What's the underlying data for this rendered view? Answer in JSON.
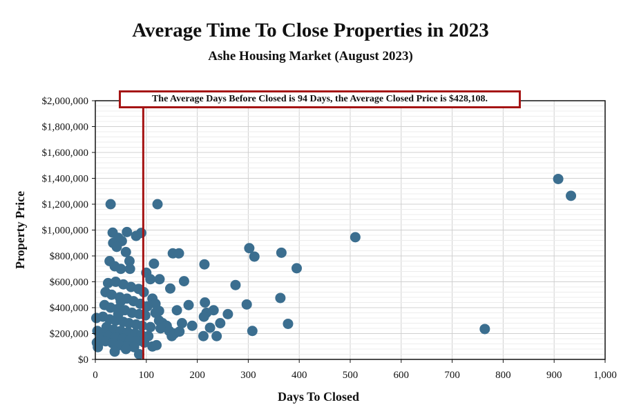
{
  "title": "Average Time To Close Properties in 2023",
  "subtitle": "Ashe Housing Market (August 2023)",
  "annotation": "The Average Days Before Closed is 94 Days, the Average Closed Price is $428,108.",
  "colors": {
    "points": "#3b6e8f",
    "reference_line": "#a51414",
    "grid": "#d0d0d0"
  },
  "chart_data": {
    "type": "scatter",
    "xlabel": "Days To Closed",
    "ylabel": "Property Price",
    "xlim": [
      0,
      1000
    ],
    "ylim": [
      0,
      2000000
    ],
    "xticks": [
      "0",
      "100",
      "200",
      "300",
      "400",
      "500",
      "600",
      "700",
      "800",
      "900",
      "1,000"
    ],
    "yticks": [
      "$0",
      "$200,000",
      "$400,000",
      "$600,000",
      "$800,000",
      "$1,000,000",
      "$1,200,000",
      "$1,400,000",
      "$1,600,000",
      "$1,800,000",
      "$2,000,000"
    ],
    "xtick_values": [
      0,
      100,
      200,
      300,
      400,
      500,
      600,
      700,
      800,
      900,
      1000
    ],
    "ytick_values": [
      0,
      200000,
      400000,
      600000,
      800000,
      1000000,
      1200000,
      1400000,
      1600000,
      1800000,
      2000000
    ],
    "grid": true,
    "reference_x": 94,
    "points": [
      [
        30,
        1200000
      ],
      [
        122,
        1200000
      ],
      [
        908,
        1395000
      ],
      [
        933,
        1265000
      ],
      [
        34,
        980000
      ],
      [
        62,
        985000
      ],
      [
        90,
        978000
      ],
      [
        80,
        955000
      ],
      [
        45,
        940000
      ],
      [
        52,
        915000
      ],
      [
        35,
        900000
      ],
      [
        42,
        870000
      ],
      [
        510,
        945000
      ],
      [
        302,
        860000
      ],
      [
        365,
        825000
      ],
      [
        312,
        795000
      ],
      [
        152,
        820000
      ],
      [
        164,
        820000
      ],
      [
        395,
        705000
      ],
      [
        214,
        735000
      ],
      [
        60,
        830000
      ],
      [
        28,
        760000
      ],
      [
        67,
        760000
      ],
      [
        38,
        720000
      ],
      [
        50,
        700000
      ],
      [
        68,
        700000
      ],
      [
        115,
        740000
      ],
      [
        100,
        670000
      ],
      [
        108,
        620000
      ],
      [
        126,
        620000
      ],
      [
        174,
        605000
      ],
      [
        275,
        575000
      ],
      [
        147,
        548000
      ],
      [
        25,
        590000
      ],
      [
        40,
        600000
      ],
      [
        55,
        580000
      ],
      [
        70,
        560000
      ],
      [
        85,
        545000
      ],
      [
        95,
        520000
      ],
      [
        112,
        470000
      ],
      [
        118,
        430000
      ],
      [
        20,
        520000
      ],
      [
        32,
        500000
      ],
      [
        48,
        480000
      ],
      [
        62,
        470000
      ],
      [
        75,
        450000
      ],
      [
        88,
        430000
      ],
      [
        102,
        410000
      ],
      [
        18,
        420000
      ],
      [
        30,
        400000
      ],
      [
        44,
        390000
      ],
      [
        58,
        380000
      ],
      [
        72,
        360000
      ],
      [
        86,
        350000
      ],
      [
        98,
        340000
      ],
      [
        15,
        330000
      ],
      [
        28,
        310000
      ],
      [
        40,
        300000
      ],
      [
        55,
        290000
      ],
      [
        66,
        280000
      ],
      [
        80,
        270000
      ],
      [
        92,
        260000
      ],
      [
        108,
        250000
      ],
      [
        22,
        250000
      ],
      [
        36,
        230000
      ],
      [
        50,
        220000
      ],
      [
        64,
        210000
      ],
      [
        78,
        200000
      ],
      [
        90,
        190000
      ],
      [
        104,
        180000
      ],
      [
        12,
        200000
      ],
      [
        26,
        180000
      ],
      [
        40,
        170000
      ],
      [
        54,
        160000
      ],
      [
        68,
        150000
      ],
      [
        82,
        140000
      ],
      [
        96,
        130000
      ],
      [
        8,
        150000
      ],
      [
        20,
        140000
      ],
      [
        34,
        125000
      ],
      [
        48,
        110000
      ],
      [
        62,
        100000
      ],
      [
        76,
        95000
      ],
      [
        112,
        100000
      ],
      [
        120,
        110000
      ],
      [
        2,
        320000
      ],
      [
        4,
        220000
      ],
      [
        3,
        130000
      ],
      [
        5,
        95000
      ],
      [
        38,
        60000
      ],
      [
        60,
        80000
      ],
      [
        86,
        40000
      ],
      [
        50,
        450000
      ],
      [
        45,
        350000
      ],
      [
        125,
        300000
      ],
      [
        132,
        280000
      ],
      [
        140,
        260000
      ],
      [
        128,
        240000
      ],
      [
        145,
        220000
      ],
      [
        155,
        200000
      ],
      [
        150,
        180000
      ],
      [
        165,
        215000
      ],
      [
        118,
        360000
      ],
      [
        125,
        375000
      ],
      [
        160,
        380000
      ],
      [
        183,
        420000
      ],
      [
        170,
        280000
      ],
      [
        190,
        260000
      ],
      [
        215,
        440000
      ],
      [
        218,
        360000
      ],
      [
        213,
        330000
      ],
      [
        232,
        380000
      ],
      [
        225,
        245000
      ],
      [
        245,
        280000
      ],
      [
        238,
        180000
      ],
      [
        212,
        180000
      ],
      [
        260,
        350000
      ],
      [
        297,
        425000
      ],
      [
        308,
        220000
      ],
      [
        363,
        475000
      ],
      [
        378,
        275000
      ],
      [
        764,
        235000
      ]
    ]
  }
}
